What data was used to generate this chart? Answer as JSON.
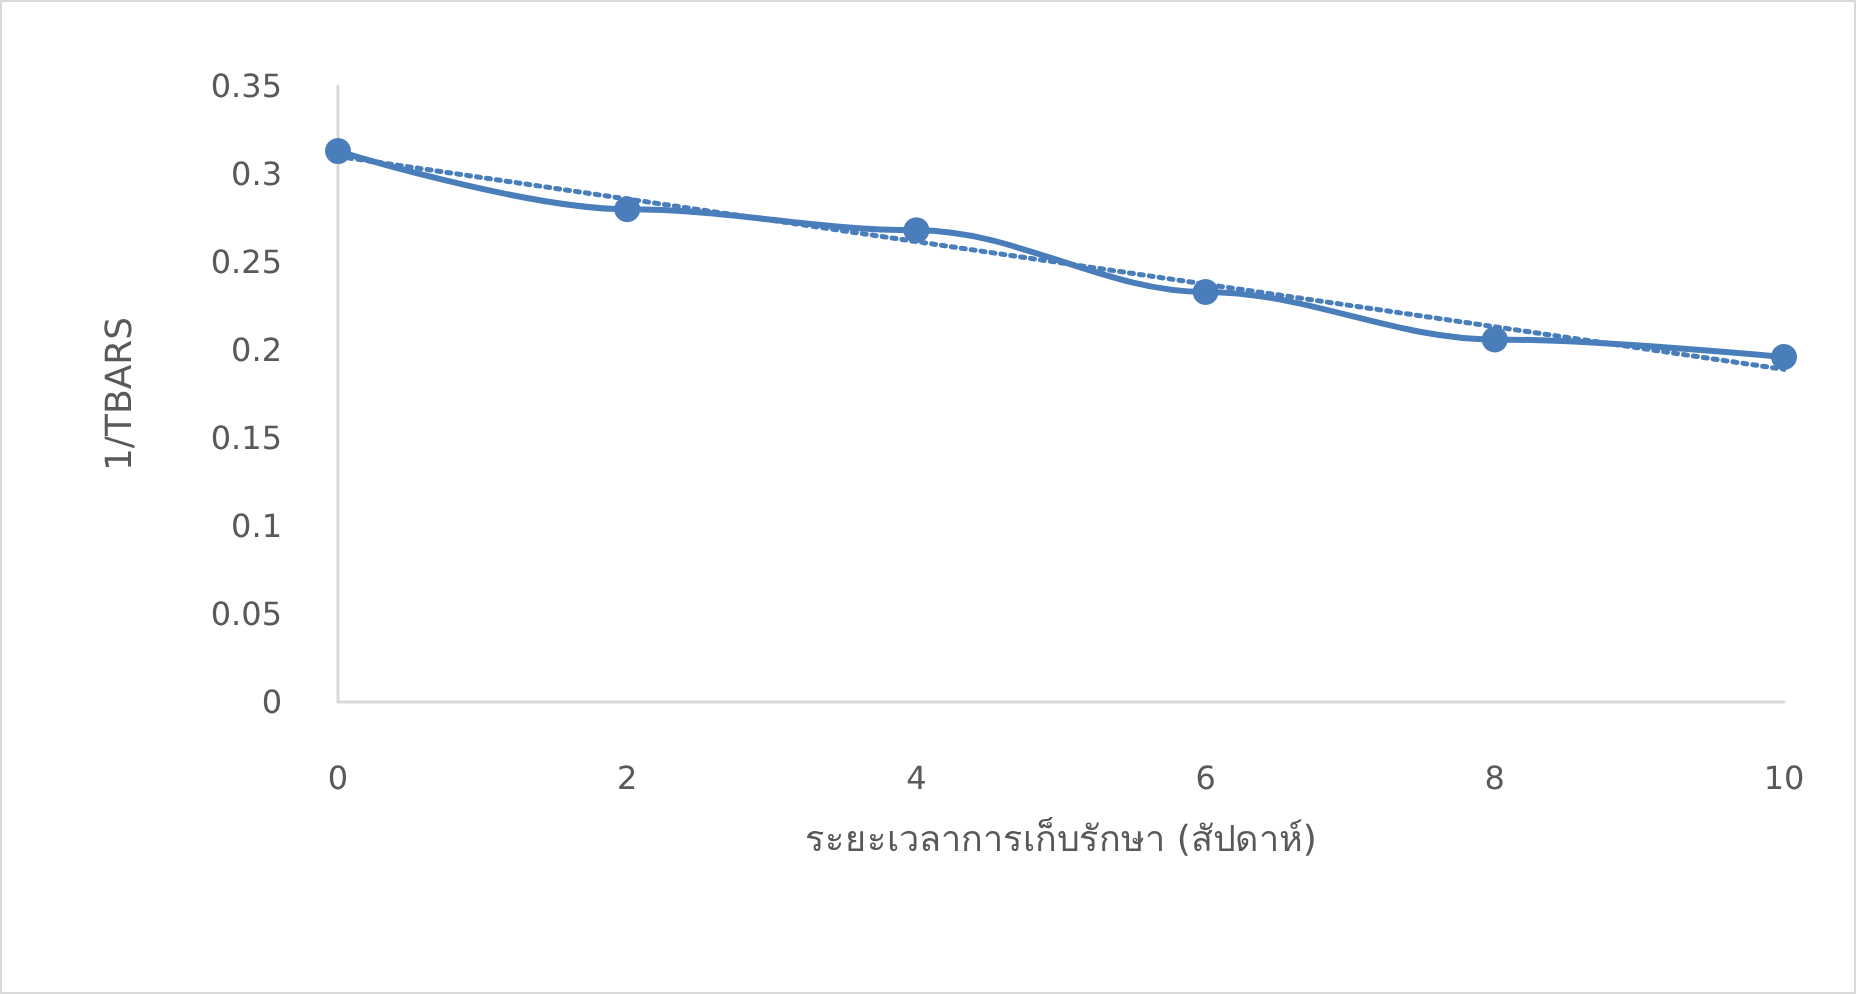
{
  "chart_data": {
    "type": "line",
    "xlabel": "ระยะเวลาการเก็บรักษา (สัปดาห์)",
    "ylabel": "1/TBARS",
    "xlim": [
      0,
      10
    ],
    "xticks": [
      0,
      2,
      4,
      6,
      8,
      10
    ],
    "ylim": [
      0,
      0.35
    ],
    "yticks": [
      0,
      0.05,
      0.1,
      0.15,
      0.2,
      0.25,
      0.3,
      0.35
    ],
    "series": [
      {
        "color": "#4a7ebb",
        "x": [
          0,
          2,
          4,
          6,
          8,
          10
        ],
        "values": [
          0.313,
          0.28,
          0.268,
          0.233,
          0.206,
          0.196
        ],
        "marker": "circle",
        "line_style": "solid"
      },
      {
        "color": "#4a7ebb",
        "x": [
          0,
          10
        ],
        "values": [
          0.31,
          0.189
        ],
        "marker": "none",
        "line_style": "dotted"
      }
    ]
  }
}
